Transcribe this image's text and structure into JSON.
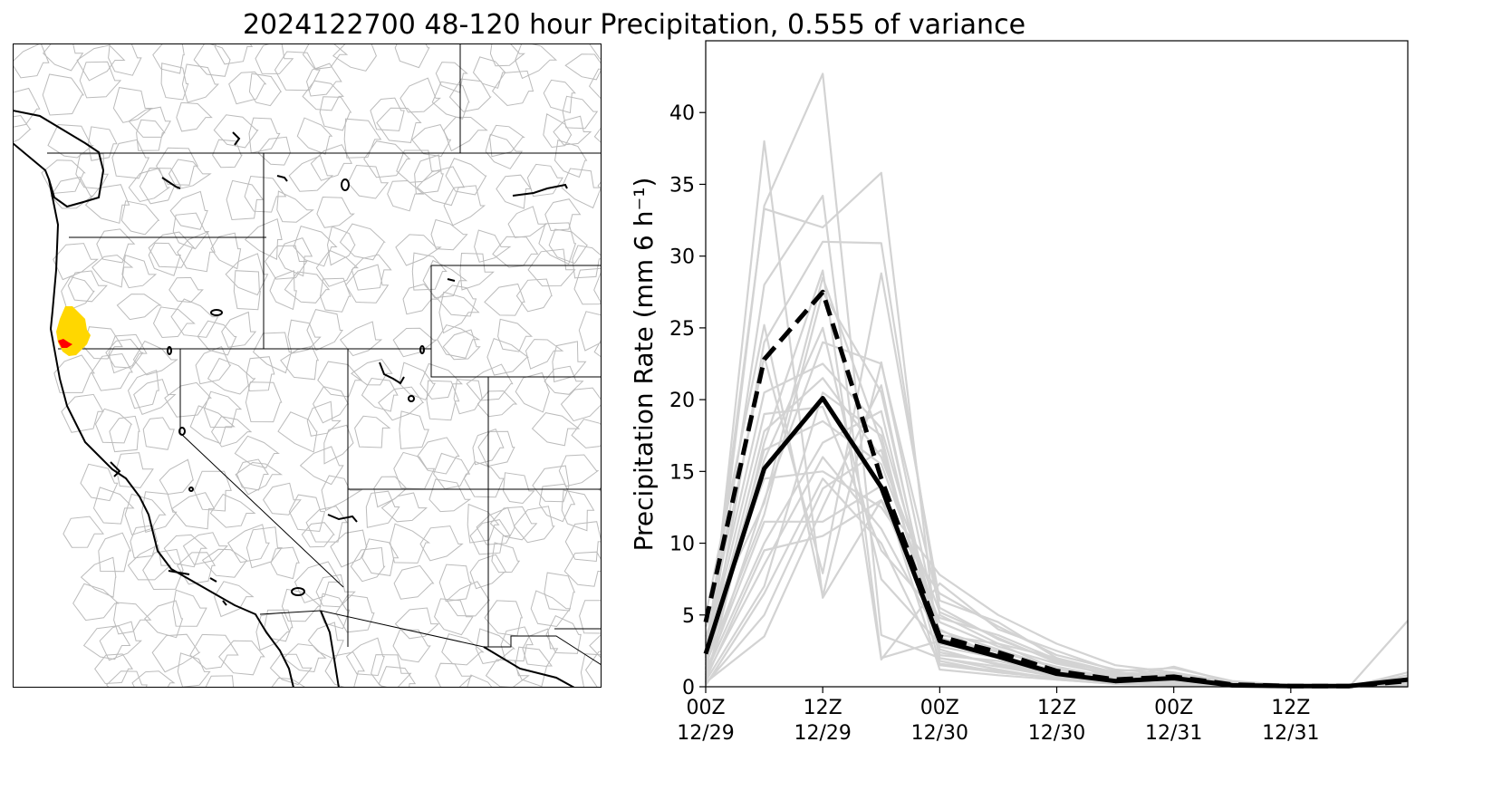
{
  "figure": {
    "title": "2024122700 48-120 hour Precipitation, 0.555 of variance"
  },
  "map": {
    "colors": {
      "background": "#ffffff",
      "watershed_lines": "#bbbbbb",
      "coast_and_borders": "#000000",
      "highlight_outer": "#ffd700",
      "highlight_inner": "#ff0000"
    }
  },
  "chart_data": {
    "type": "line",
    "title": "",
    "xlabel": "",
    "ylabel": "Precipitation Rate (mm 6 h⁻¹)",
    "xlim_hours": [
      0,
      72
    ],
    "ylim": [
      0,
      45
    ],
    "grid": false,
    "legend": "none",
    "x_hours": [
      0,
      6,
      12,
      18,
      24,
      30,
      36,
      42,
      48,
      54,
      60,
      66,
      72
    ],
    "x_ticks": [
      {
        "hour": 0,
        "label_line1": "00Z",
        "label_line2": "12/29"
      },
      {
        "hour": 12,
        "label_line1": "12Z",
        "label_line2": "12/29"
      },
      {
        "hour": 24,
        "label_line1": "00Z",
        "label_line2": "12/30"
      },
      {
        "hour": 36,
        "label_line1": "12Z",
        "label_line2": "12/30"
      },
      {
        "hour": 48,
        "label_line1": "00Z",
        "label_line2": "12/31"
      },
      {
        "hour": 60,
        "label_line1": "12Z",
        "label_line2": "12/31"
      }
    ],
    "y_ticks": [
      0,
      5,
      10,
      15,
      20,
      25,
      30,
      35,
      40
    ],
    "series": [
      {
        "style": "solid",
        "color": "#000000",
        "values": [
          2.3,
          15.2,
          20.1,
          13.9,
          3.2,
          2.1,
          0.9,
          0.4,
          0.6,
          0.1,
          0.05,
          0.05,
          0.5
        ]
      },
      {
        "style": "dashed",
        "color": "#000000",
        "values": [
          4.5,
          22.8,
          27.5,
          14.5,
          3.5,
          2.4,
          1.1,
          0.5,
          0.7,
          0.15,
          0.05,
          0.05,
          0.4
        ]
      }
    ],
    "ensemble_color": "#d3d3d3",
    "ensemble_members": [
      [
        0.5,
        38.0,
        6.2,
        13.0,
        4.0,
        2.0,
        1.0,
        0.3,
        0.2,
        0.1,
        0.1,
        0.0,
        4.6
      ],
      [
        0.3,
        33.5,
        42.7,
        3.6,
        2.0,
        1.2,
        0.5,
        0.2,
        0.4,
        0.0,
        0.1,
        0.0,
        0.8
      ],
      [
        1.2,
        28.0,
        34.2,
        2.0,
        3.2,
        2.5,
        1.3,
        0.4,
        0.3,
        0.1,
        0.0,
        0.0,
        0.5
      ],
      [
        2.0,
        33.3,
        32.0,
        35.8,
        1.8,
        1.0,
        0.6,
        0.2,
        0.6,
        0.0,
        0.0,
        0.0,
        0.3
      ],
      [
        0.8,
        24.0,
        31.0,
        30.9,
        5.0,
        3.0,
        2.0,
        0.5,
        0.3,
        0.0,
        0.0,
        0.0,
        0.2
      ],
      [
        3.0,
        23.0,
        7.9,
        28.8,
        6.0,
        4.5,
        2.0,
        1.0,
        0.8,
        0.2,
        0.1,
        0.0,
        0.1
      ],
      [
        5.0,
        25.2,
        6.3,
        22.6,
        3.6,
        3.0,
        1.2,
        0.4,
        0.4,
        0.1,
        0.0,
        0.0,
        0.0
      ],
      [
        0.2,
        17.0,
        29.0,
        1.9,
        7.2,
        4.0,
        2.5,
        1.1,
        1.3,
        0.4,
        0.1,
        0.0,
        1.0
      ],
      [
        1.5,
        12.0,
        27.5,
        20.5,
        2.6,
        1.5,
        0.8,
        0.3,
        0.2,
        0.1,
        0.0,
        0.0,
        0.1
      ],
      [
        0.6,
        13.0,
        24.0,
        22.5,
        5.5,
        3.3,
        1.8,
        0.7,
        0.5,
        0.2,
        0.0,
        0.0,
        0.2
      ],
      [
        2.5,
        20.5,
        22.5,
        18.0,
        3.9,
        2.6,
        1.3,
        0.6,
        1.4,
        0.3,
        0.1,
        0.0,
        0.0
      ],
      [
        0.4,
        7.0,
        20.5,
        17.5,
        1.5,
        1.0,
        0.6,
        0.3,
        0.2,
        0.0,
        0.0,
        0.0,
        0.3
      ],
      [
        1.8,
        16.5,
        18.5,
        15.5,
        4.5,
        2.8,
        1.6,
        0.8,
        0.6,
        0.1,
        0.0,
        0.0,
        0.1
      ],
      [
        0.9,
        10.0,
        17.0,
        19.2,
        2.2,
        1.8,
        0.9,
        0.5,
        0.3,
        0.0,
        0.0,
        0.0,
        0.0
      ],
      [
        3.5,
        14.5,
        15.0,
        12.5,
        6.5,
        4.2,
        2.2,
        1.2,
        0.9,
        0.2,
        0.0,
        0.0,
        0.4
      ],
      [
        0.2,
        5.0,
        13.8,
        16.5,
        2.8,
        2.0,
        1.0,
        0.4,
        0.2,
        0.1,
        0.0,
        0.0,
        0.0
      ],
      [
        1.0,
        11.5,
        11.5,
        14.0,
        1.2,
        0.8,
        0.5,
        0.2,
        0.1,
        0.0,
        0.0,
        0.0,
        0.2
      ],
      [
        0.7,
        8.5,
        16.0,
        11.0,
        3.4,
        2.4,
        1.4,
        0.6,
        0.5,
        0.1,
        0.0,
        0.0,
        0.0
      ],
      [
        2.2,
        19.0,
        19.5,
        9.5,
        4.8,
        3.6,
        1.9,
        0.9,
        0.7,
        0.2,
        0.1,
        0.0,
        0.6
      ],
      [
        0.3,
        3.5,
        12.5,
        21.0,
        2.0,
        1.4,
        0.7,
        0.3,
        0.3,
        0.0,
        0.0,
        0.0,
        0.1
      ],
      [
        1.3,
        15.8,
        25.0,
        7.5,
        3.0,
        2.2,
        1.1,
        0.5,
        0.4,
        0.1,
        0.0,
        0.0,
        0.0
      ],
      [
        0.5,
        9.5,
        10.5,
        13.0,
        7.8,
        5.0,
        3.0,
        1.5,
        1.0,
        0.3,
        0.1,
        0.0,
        0.2
      ],
      [
        4.2,
        12.8,
        28.5,
        17.0,
        2.4,
        1.6,
        0.9,
        0.4,
        0.2,
        0.0,
        0.0,
        0.0,
        0.0
      ],
      [
        0.1,
        6.5,
        14.5,
        10.0,
        1.6,
        1.1,
        0.6,
        0.2,
        0.1,
        0.0,
        0.0,
        0.0,
        0.1
      ],
      [
        1.6,
        17.8,
        21.5,
        16.0,
        5.2,
        3.4,
        1.7,
        0.8,
        0.6,
        0.1,
        0.0,
        0.0,
        0.3
      ]
    ]
  }
}
